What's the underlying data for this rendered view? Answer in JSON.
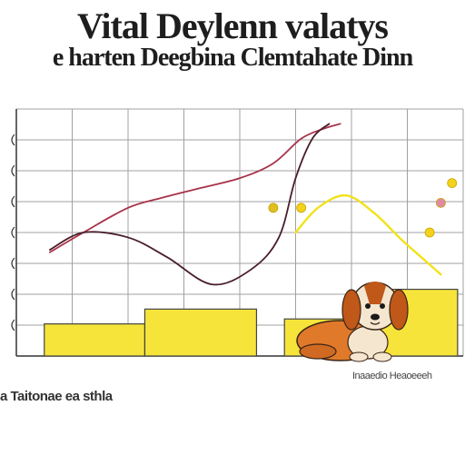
{
  "header": {
    "title": "Vital Deylenn valatys",
    "subtitle": "e harten Deegbina Clemtahate Dinn"
  },
  "footer": {
    "left_text": "a Taitonae ea sthla",
    "right_text": "Inaaedio Heaoeeeh"
  },
  "chart_data": {
    "type": "bar",
    "title": "Vital Deylenn valatys",
    "subtitle": "e harten Deegbina Clemtahate Dinn",
    "xlim": [
      0,
      8
    ],
    "ylim": [
      0,
      100
    ],
    "grid": true,
    "bars": [
      {
        "x0": 0.5,
        "x1": 2.3,
        "value": 13
      },
      {
        "x0": 2.3,
        "x1": 4.3,
        "value": 19
      },
      {
        "x0": 4.8,
        "x1": 6.4,
        "value": 15
      },
      {
        "x0": 6.4,
        "x1": 7.9,
        "value": 27
      }
    ],
    "series": [
      {
        "color": "#a8324a",
        "points": [
          [
            0.6,
            42
          ],
          [
            1.2,
            50
          ],
          [
            2.0,
            60
          ],
          [
            2.6,
            64
          ],
          [
            3.3,
            68
          ],
          [
            4.0,
            72
          ],
          [
            4.6,
            78
          ],
          [
            5.1,
            88
          ],
          [
            5.5,
            92
          ],
          [
            5.8,
            94
          ]
        ]
      },
      {
        "color": "#4a1f2a",
        "points": [
          [
            0.6,
            43
          ],
          [
            1.2,
            50
          ],
          [
            2.0,
            48
          ],
          [
            2.7,
            40
          ],
          [
            3.5,
            29
          ],
          [
            4.2,
            35
          ],
          [
            4.7,
            48
          ],
          [
            5.0,
            72
          ],
          [
            5.3,
            88
          ],
          [
            5.6,
            94
          ]
        ]
      },
      {
        "color": "#f2e21a",
        "points": [
          [
            5.0,
            50
          ],
          [
            5.4,
            60
          ],
          [
            5.9,
            65
          ],
          [
            6.4,
            58
          ],
          [
            6.9,
            47
          ],
          [
            7.3,
            39
          ],
          [
            7.6,
            33
          ]
        ]
      }
    ],
    "markers": [
      {
        "x": 4.6,
        "y": 60,
        "color": "#e0c020"
      },
      {
        "x": 5.1,
        "y": 60,
        "color": "#f2d21a"
      },
      {
        "x": 7.4,
        "y": 50,
        "color": "#f2d21a"
      },
      {
        "x": 7.6,
        "y": 62,
        "color": "#e08aa8"
      },
      {
        "x": 7.8,
        "y": 70,
        "color": "#f2d21a"
      }
    ],
    "colors": {
      "bar_fill": "#f6e43a",
      "bar_stroke": "#444444",
      "grid": "#a0a0a0",
      "axis": "#333333"
    },
    "illustration": "cartoon-puppy"
  }
}
